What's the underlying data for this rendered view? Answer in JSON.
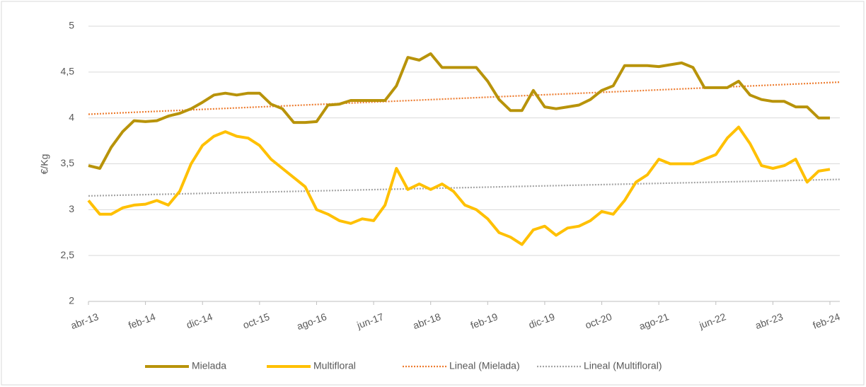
{
  "chart_data": {
    "type": "line",
    "ylabel": "€/Kg",
    "categories": [
      "abr-13",
      null,
      null,
      null,
      null,
      "feb-14",
      null,
      null,
      null,
      null,
      "dic-14",
      null,
      null,
      null,
      null,
      "oct-15",
      null,
      null,
      null,
      null,
      "ago-16",
      null,
      null,
      null,
      null,
      "jun-17",
      null,
      null,
      null,
      null,
      "abr-18",
      null,
      null,
      null,
      null,
      "feb-19",
      null,
      null,
      null,
      null,
      "dic-19",
      null,
      null,
      null,
      null,
      "oct-20",
      null,
      null,
      null,
      null,
      "ago-21",
      null,
      null,
      null,
      null,
      "jun-22",
      null,
      null,
      null,
      null,
      "abr-23",
      null,
      null,
      null,
      null,
      "feb-24"
    ],
    "series": [
      {
        "name": "Mielada",
        "color": "#b8930a",
        "values": [
          3.48,
          3.45,
          3.68,
          3.85,
          3.97,
          3.96,
          3.97,
          4.02,
          4.05,
          4.1,
          4.17,
          4.25,
          4.27,
          4.25,
          4.27,
          4.27,
          4.15,
          4.1,
          3.95,
          3.95,
          3.96,
          4.14,
          4.15,
          4.19,
          4.19,
          4.19,
          4.19,
          4.35,
          4.66,
          4.63,
          4.7,
          4.55,
          4.55,
          4.55,
          4.55,
          4.4,
          4.2,
          4.08,
          4.08,
          4.3,
          4.12,
          4.1,
          4.12,
          4.14,
          4.2,
          4.3,
          4.35,
          4.57,
          4.57,
          4.57,
          4.56,
          4.58,
          4.6,
          4.55,
          4.33,
          4.33,
          4.33,
          4.4,
          4.25,
          4.2,
          4.18,
          4.18,
          4.12,
          4.12,
          4.0,
          4.0
        ]
      },
      {
        "name": "Multifloral",
        "color": "#ffc000",
        "values": [
          3.1,
          2.95,
          2.95,
          3.02,
          3.05,
          3.06,
          3.1,
          3.05,
          3.2,
          3.5,
          3.7,
          3.8,
          3.85,
          3.8,
          3.78,
          3.7,
          3.55,
          3.45,
          3.35,
          3.25,
          3.0,
          2.95,
          2.88,
          2.85,
          2.9,
          2.88,
          3.05,
          3.45,
          3.22,
          3.28,
          3.22,
          3.28,
          3.2,
          3.05,
          3.0,
          2.9,
          2.75,
          2.7,
          2.62,
          2.78,
          2.82,
          2.72,
          2.8,
          2.82,
          2.88,
          2.98,
          2.95,
          3.1,
          3.3,
          3.38,
          3.55,
          3.5,
          3.5,
          3.5,
          3.55,
          3.6,
          3.78,
          3.9,
          3.72,
          3.48,
          3.45,
          3.48,
          3.55,
          3.3,
          3.42,
          3.44
        ]
      }
    ],
    "trendlines": [
      {
        "name": "Lineal (Mielada)",
        "color": "#ed7d31",
        "values": [
          4.04,
          4.39
        ]
      },
      {
        "name": "Lineal (Multifloral)",
        "color": "#a5a5a5",
        "values": [
          3.15,
          3.33
        ]
      }
    ],
    "ylim": [
      2,
      5
    ],
    "yticks": [
      2,
      {
        "value": 2.5,
        "label": "2,5"
      },
      3,
      {
        "value": 3.5,
        "label": "3,5"
      },
      4,
      {
        "value": 4.5,
        "label": "4,5"
      },
      5
    ],
    "grid": true,
    "legend": "bottom"
  }
}
